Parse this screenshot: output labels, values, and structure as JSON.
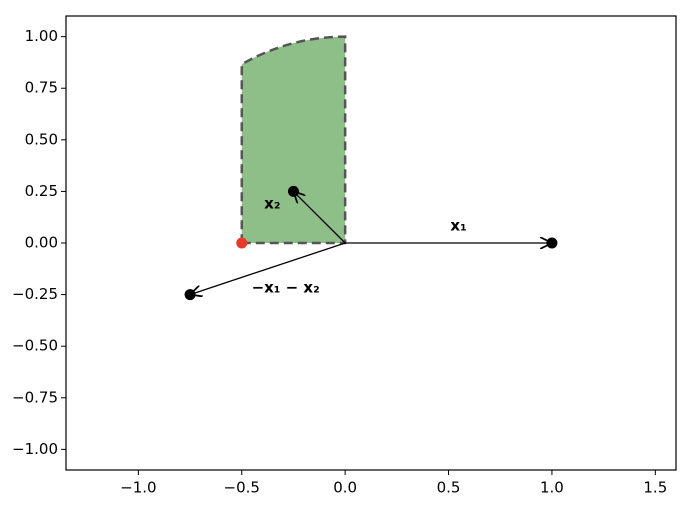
{
  "chart_data": {
    "type": "scatter",
    "xlim": [
      -1.35,
      1.6
    ],
    "ylim": [
      -1.1,
      1.1
    ],
    "xticks": [
      {
        "value": -1.0,
        "label": "−1.0"
      },
      {
        "value": -0.5,
        "label": "−0.5"
      },
      {
        "value": 0.0,
        "label": "0.0"
      },
      {
        "value": 0.5,
        "label": "0.5"
      },
      {
        "value": 1.0,
        "label": "1.0"
      },
      {
        "value": 1.5,
        "label": "1.5"
      }
    ],
    "yticks": [
      {
        "value": 1.0,
        "label": "1.00"
      },
      {
        "value": 0.75,
        "label": "0.75"
      },
      {
        "value": 0.5,
        "label": "0.50"
      },
      {
        "value": 0.25,
        "label": "0.25"
      },
      {
        "value": 0.0,
        "label": "0.00"
      },
      {
        "value": -0.25,
        "label": "−0.25"
      },
      {
        "value": -0.5,
        "label": "−0.50"
      },
      {
        "value": -0.75,
        "label": "−0.75"
      },
      {
        "value": -1.0,
        "label": "−1.00"
      }
    ],
    "x": [
      1.0,
      -0.25,
      -0.75,
      -0.5
    ],
    "values": [
      0.0,
      0.25,
      -0.25,
      0.0
    ],
    "point_colors": [
      "#000000",
      "#000000",
      "#000000",
      "#e8392b"
    ],
    "point_labels": [
      "x₁",
      "x₂",
      "−x₁ − x₂",
      null
    ],
    "region": {
      "x": [
        -0.5,
        0.0,
        0.0,
        -0.5
      ],
      "y": [
        0.0,
        0.0,
        1.0,
        0.866
      ],
      "color": "#8fbf88"
    }
  }
}
